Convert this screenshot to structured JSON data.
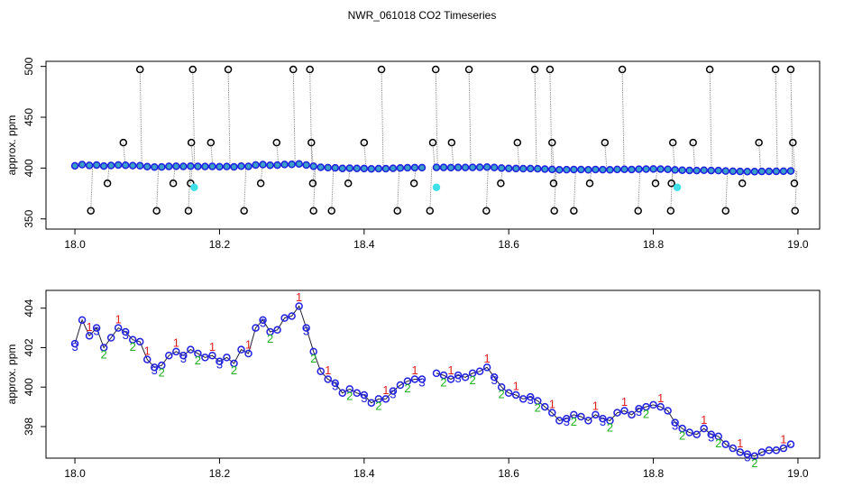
{
  "title": "NWR_061018  CO2 Timeseries",
  "chart_data": [
    {
      "type": "scatter",
      "ylabel": "approx. ppm",
      "xlim": [
        17.96,
        19.03
      ],
      "ylim": [
        340,
        505
      ],
      "xticks": [
        {
          "value": 18.0,
          "label": "18.0"
        },
        {
          "value": 18.2,
          "label": "18.2"
        },
        {
          "value": 18.4,
          "label": "18.4"
        },
        {
          "value": 18.6,
          "label": "18.6"
        },
        {
          "value": 18.8,
          "label": "18.8"
        },
        {
          "value": 19.0,
          "label": "19.0"
        }
      ],
      "yticks": [
        350,
        400,
        450,
        500
      ],
      "series": [
        {
          "color": "#1f1fe0",
          "fill": "#3aa0c8",
          "line": true,
          "x": [
            18.0,
            18.01,
            18.02,
            18.03,
            18.04,
            18.05,
            18.06,
            18.07,
            18.08,
            18.09,
            18.1,
            18.11,
            18.12,
            18.13,
            18.14,
            18.15,
            18.16,
            18.17,
            18.18,
            18.19,
            18.2,
            18.21,
            18.22,
            18.23,
            18.24,
            18.25,
            18.26,
            18.27,
            18.28,
            18.29,
            18.3,
            18.31,
            18.32,
            18.33,
            18.34,
            18.35,
            18.36,
            18.37,
            18.38,
            18.39,
            18.4,
            18.41,
            18.42,
            18.43,
            18.44,
            18.45,
            18.46,
            18.47,
            18.48,
            18.49,
            18.5,
            18.51,
            18.52,
            18.53,
            18.54,
            18.55,
            18.56,
            18.57,
            18.58,
            18.59,
            18.6,
            18.61,
            18.62,
            18.63,
            18.64,
            18.65,
            18.66,
            18.67,
            18.68,
            18.69,
            18.7,
            18.71,
            18.72,
            18.73,
            18.74,
            18.75,
            18.76,
            18.77,
            18.78,
            18.79,
            18.8,
            18.81,
            18.82,
            18.83,
            18.84,
            18.85,
            18.86,
            18.87,
            18.88,
            18.89,
            18.9,
            18.91,
            18.92,
            18.93,
            18.94,
            18.95,
            18.96,
            18.97,
            18.98,
            18.99
          ],
          "values": [
            402.2,
            403.4,
            402.6,
            403.0,
            402.0,
            402.5,
            403.0,
            402.8,
            402.4,
            402.3,
            401.4,
            401.0,
            401.1,
            401.6,
            401.8,
            401.6,
            401.9,
            401.7,
            401.5,
            401.6,
            401.3,
            401.5,
            401.2,
            401.9,
            401.7,
            403.0,
            403.4,
            402.8,
            402.9,
            403.5,
            403.6,
            404.1,
            403.0,
            401.8,
            400.8,
            400.4,
            400.2,
            399.7,
            399.9,
            399.7,
            399.6,
            399.2,
            399.4,
            399.4,
            399.8,
            400.1,
            400.3,
            400.4,
            400.4,
            null,
            400.7,
            400.6,
            400.4,
            400.6,
            400.5,
            400.7,
            400.8,
            401.0,
            400.5,
            400.0,
            399.7,
            399.6,
            399.4,
            399.5,
            399.3,
            399.0,
            398.7,
            398.3,
            398.4,
            398.6,
            398.5,
            398.3,
            398.6,
            398.4,
            398.3,
            398.7,
            398.8,
            398.6,
            398.9,
            399.0,
            399.1,
            399.0,
            398.8,
            398.2,
            397.9,
            397.7,
            397.6,
            397.9,
            397.6,
            397.5,
            397.1,
            396.9,
            396.7,
            396.6,
            396.5,
            396.7,
            396.8,
            396.8,
            396.9,
            397.1
          ]
        },
        {
          "color": "#000000",
          "drop_lines": true,
          "x": [
            18.09,
            18.163,
            18.212,
            18.302,
            18.325,
            18.424,
            18.499,
            18.545,
            18.636,
            18.657,
            18.757,
            18.878,
            18.969,
            18.99,
            18.067,
            18.161,
            18.188,
            18.279,
            18.327,
            18.4,
            18.495,
            18.521,
            18.612,
            18.66,
            18.733,
            18.827,
            18.855,
            18.946,
            18.993,
            18.045,
            18.136,
            18.16,
            18.257,
            18.329,
            18.378,
            18.469,
            18.589,
            18.662,
            18.712,
            18.803,
            18.825,
            18.923,
            18.995,
            18.022,
            18.113,
            18.157,
            18.234,
            18.33,
            18.355,
            18.446,
            18.491,
            18.569,
            18.663,
            18.69,
            18.779,
            18.824,
            18.9,
            18.996
          ],
          "values": [
            497,
            497,
            497,
            497,
            497,
            497,
            497,
            497,
            497,
            497,
            497,
            497,
            497,
            497,
            425,
            425,
            425,
            425,
            425,
            425,
            425,
            425,
            425,
            425,
            425,
            425,
            425,
            425,
            425,
            385,
            385,
            385,
            385,
            385,
            385,
            385,
            385,
            385,
            385,
            385,
            385,
            385,
            385,
            358,
            358,
            358,
            358,
            358,
            358,
            358,
            358,
            358,
            358,
            358,
            358,
            358,
            358,
            358
          ]
        },
        {
          "color": "#40e0e8",
          "fill": "#40e0e8",
          "x": [
            18.165,
            18.5,
            18.833
          ],
          "values": [
            381,
            381,
            381
          ]
        }
      ]
    },
    {
      "type": "scatter",
      "ylabel": "approx. ppm",
      "xlim": [
        17.96,
        19.03
      ],
      "ylim": [
        396.4,
        404.9
      ],
      "xticks": [
        {
          "value": 18.0,
          "label": "18.0"
        },
        {
          "value": 18.2,
          "label": "18.2"
        },
        {
          "value": 18.4,
          "label": "18.4"
        },
        {
          "value": 18.6,
          "label": "18.6"
        },
        {
          "value": 18.8,
          "label": "18.8"
        },
        {
          "value": 19.0,
          "label": "19.0"
        }
      ],
      "yticks": [
        398,
        400,
        402,
        404
      ],
      "series": [
        {
          "color": "#1f1fe0",
          "line": true,
          "x": [
            18.0,
            18.01,
            18.02,
            18.03,
            18.04,
            18.05,
            18.06,
            18.07,
            18.08,
            18.09,
            18.1,
            18.11,
            18.12,
            18.13,
            18.14,
            18.15,
            18.16,
            18.17,
            18.18,
            18.19,
            18.2,
            18.21,
            18.22,
            18.23,
            18.24,
            18.25,
            18.26,
            18.27,
            18.28,
            18.29,
            18.3,
            18.31,
            18.32,
            18.33,
            18.34,
            18.35,
            18.36,
            18.37,
            18.38,
            18.39,
            18.4,
            18.41,
            18.42,
            18.43,
            18.44,
            18.45,
            18.46,
            18.47,
            18.48,
            18.49,
            18.5,
            18.51,
            18.52,
            18.53,
            18.54,
            18.55,
            18.56,
            18.57,
            18.58,
            18.59,
            18.6,
            18.61,
            18.62,
            18.63,
            18.64,
            18.65,
            18.66,
            18.67,
            18.68,
            18.69,
            18.7,
            18.71,
            18.72,
            18.73,
            18.74,
            18.75,
            18.76,
            18.77,
            18.78,
            18.79,
            18.8,
            18.81,
            18.82,
            18.83,
            18.84,
            18.85,
            18.86,
            18.87,
            18.88,
            18.89,
            18.9,
            18.91,
            18.92,
            18.93,
            18.94,
            18.95,
            18.96,
            18.97,
            18.98,
            18.99
          ],
          "values": [
            402.2,
            403.4,
            402.6,
            403.0,
            402.0,
            402.5,
            403.0,
            402.8,
            402.4,
            402.3,
            401.4,
            401.0,
            401.1,
            401.6,
            401.8,
            401.6,
            401.9,
            401.7,
            401.5,
            401.6,
            401.3,
            401.5,
            401.2,
            401.9,
            401.7,
            403.0,
            403.4,
            402.8,
            402.9,
            403.5,
            403.6,
            404.1,
            403.0,
            401.8,
            400.8,
            400.4,
            400.2,
            399.7,
            399.9,
            399.7,
            399.6,
            399.2,
            399.4,
            399.4,
            399.8,
            400.1,
            400.3,
            400.4,
            400.4,
            null,
            400.7,
            400.6,
            400.4,
            400.6,
            400.5,
            400.7,
            400.8,
            401.0,
            400.5,
            400.0,
            399.7,
            399.6,
            399.4,
            399.5,
            399.3,
            399.0,
            398.7,
            398.3,
            398.4,
            398.6,
            398.5,
            398.3,
            398.6,
            398.4,
            398.3,
            398.7,
            398.8,
            398.6,
            398.9,
            399.0,
            399.1,
            399.0,
            398.8,
            398.2,
            397.9,
            397.7,
            397.6,
            397.9,
            397.6,
            397.5,
            397.1,
            396.9,
            396.7,
            396.6,
            396.5,
            396.7,
            396.8,
            396.8,
            396.9,
            397.1
          ]
        },
        {
          "color": "#e02020",
          "marker": "1",
          "x": [
            18.02,
            18.06,
            18.1,
            18.14,
            18.19,
            18.24,
            18.31,
            18.35,
            18.43,
            18.47,
            18.52,
            18.57,
            18.61,
            18.66,
            18.72,
            18.76,
            18.81,
            18.87,
            18.92,
            18.98
          ],
          "values": [
            403.0,
            403.4,
            401.8,
            402.2,
            402.0,
            402.1,
            404.5,
            400.8,
            399.8,
            400.8,
            400.8,
            401.4,
            400.0,
            399.1,
            399.0,
            399.2,
            399.4,
            398.3,
            397.1,
            397.3
          ]
        },
        {
          "color": "#20b020",
          "marker": "2",
          "x": [
            18.04,
            18.08,
            18.12,
            18.17,
            18.22,
            18.27,
            18.33,
            18.38,
            18.42,
            18.46,
            18.51,
            18.55,
            18.59,
            18.64,
            18.69,
            18.74,
            18.79,
            18.84,
            18.89,
            18.94
          ],
          "values": [
            401.6,
            402.0,
            400.7,
            401.3,
            400.8,
            402.4,
            401.4,
            399.5,
            399.0,
            399.9,
            400.2,
            400.3,
            399.6,
            398.9,
            398.2,
            397.9,
            398.6,
            397.5,
            397.1,
            396.1
          ]
        },
        {
          "color": "#2020e0",
          "marker": "3",
          "x": [
            18.0,
            18.03,
            18.07,
            18.11,
            18.15,
            18.2,
            18.26,
            18.32,
            18.36,
            18.4,
            18.44,
            18.48,
            18.53,
            18.58,
            18.63,
            18.68,
            18.73,
            18.78,
            18.83,
            18.88,
            18.93
          ],
          "values": [
            402.0,
            402.8,
            402.6,
            400.8,
            401.4,
            401.1,
            403.2,
            402.8,
            400.0,
            399.4,
            399.6,
            400.2,
            400.4,
            400.3,
            399.3,
            398.2,
            398.2,
            398.7,
            398.0,
            397.4,
            396.4
          ]
        }
      ]
    }
  ]
}
